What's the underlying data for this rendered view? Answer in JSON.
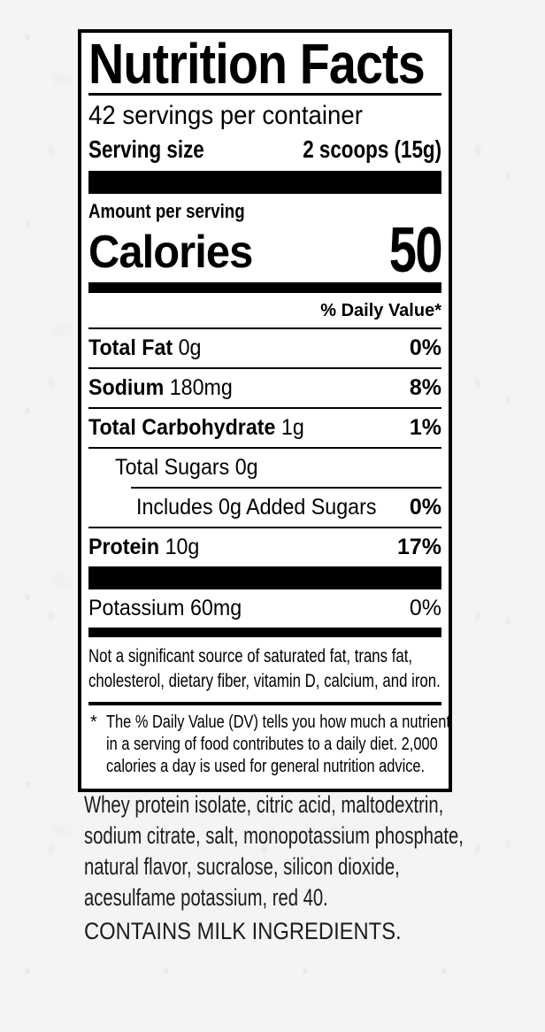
{
  "colors": {
    "label_background": "#ffffff",
    "label_border": "#000000",
    "label_text": "#000000",
    "ingredients_text": "#1c1c1c",
    "can_background": "#f4f4f3"
  },
  "label": {
    "title": "Nutrition Facts",
    "servings_per_container": "42 servings per container",
    "serving_size": {
      "label": "Serving size",
      "value": "2 scoops (15g)"
    },
    "amount_per_serving": "Amount per serving",
    "calories": {
      "label": "Calories",
      "value": "50"
    },
    "daily_value_header": "% Daily Value*",
    "nutrients": [
      {
        "name": "Total Fat",
        "amount": "0g",
        "dv": "0%"
      },
      {
        "name": "Sodium",
        "amount": "180mg",
        "dv": "8%"
      },
      {
        "name": "Total Carbohydrate",
        "amount": "1g",
        "dv": "1%"
      },
      {
        "name": "Total Sugars 0g",
        "amount": "",
        "dv": ""
      },
      {
        "name": "Includes 0g Added Sugars",
        "amount": "",
        "dv": "0%"
      },
      {
        "name": "Protein",
        "amount": "10g",
        "dv": "17%"
      },
      {
        "name": "Potassium 60mg",
        "amount": "",
        "dv": "0%"
      }
    ],
    "not_significant_lines": [
      "Not a significant source of saturated fat, trans fat,",
      "cholesterol, dietary fiber, vitamin D, calcium, and iron."
    ],
    "footnote": {
      "asterisk": "*",
      "lines": [
        "The % Daily Value (DV) tells you how much a nutrient",
        "in a serving of food contributes to a daily diet. 2,000",
        "calories a day is used for general nutrition advice."
      ]
    }
  },
  "ingredients": {
    "lines": [
      "Whey protein isolate, citric acid, maltodextrin,",
      "sodium citrate, salt, monopotassium phosphate,",
      "natural flavor, sucralose, silicon dioxide,",
      "acesulfame potassium, red 40."
    ],
    "contains": "CONTAINS MILK INGREDIENTS."
  }
}
